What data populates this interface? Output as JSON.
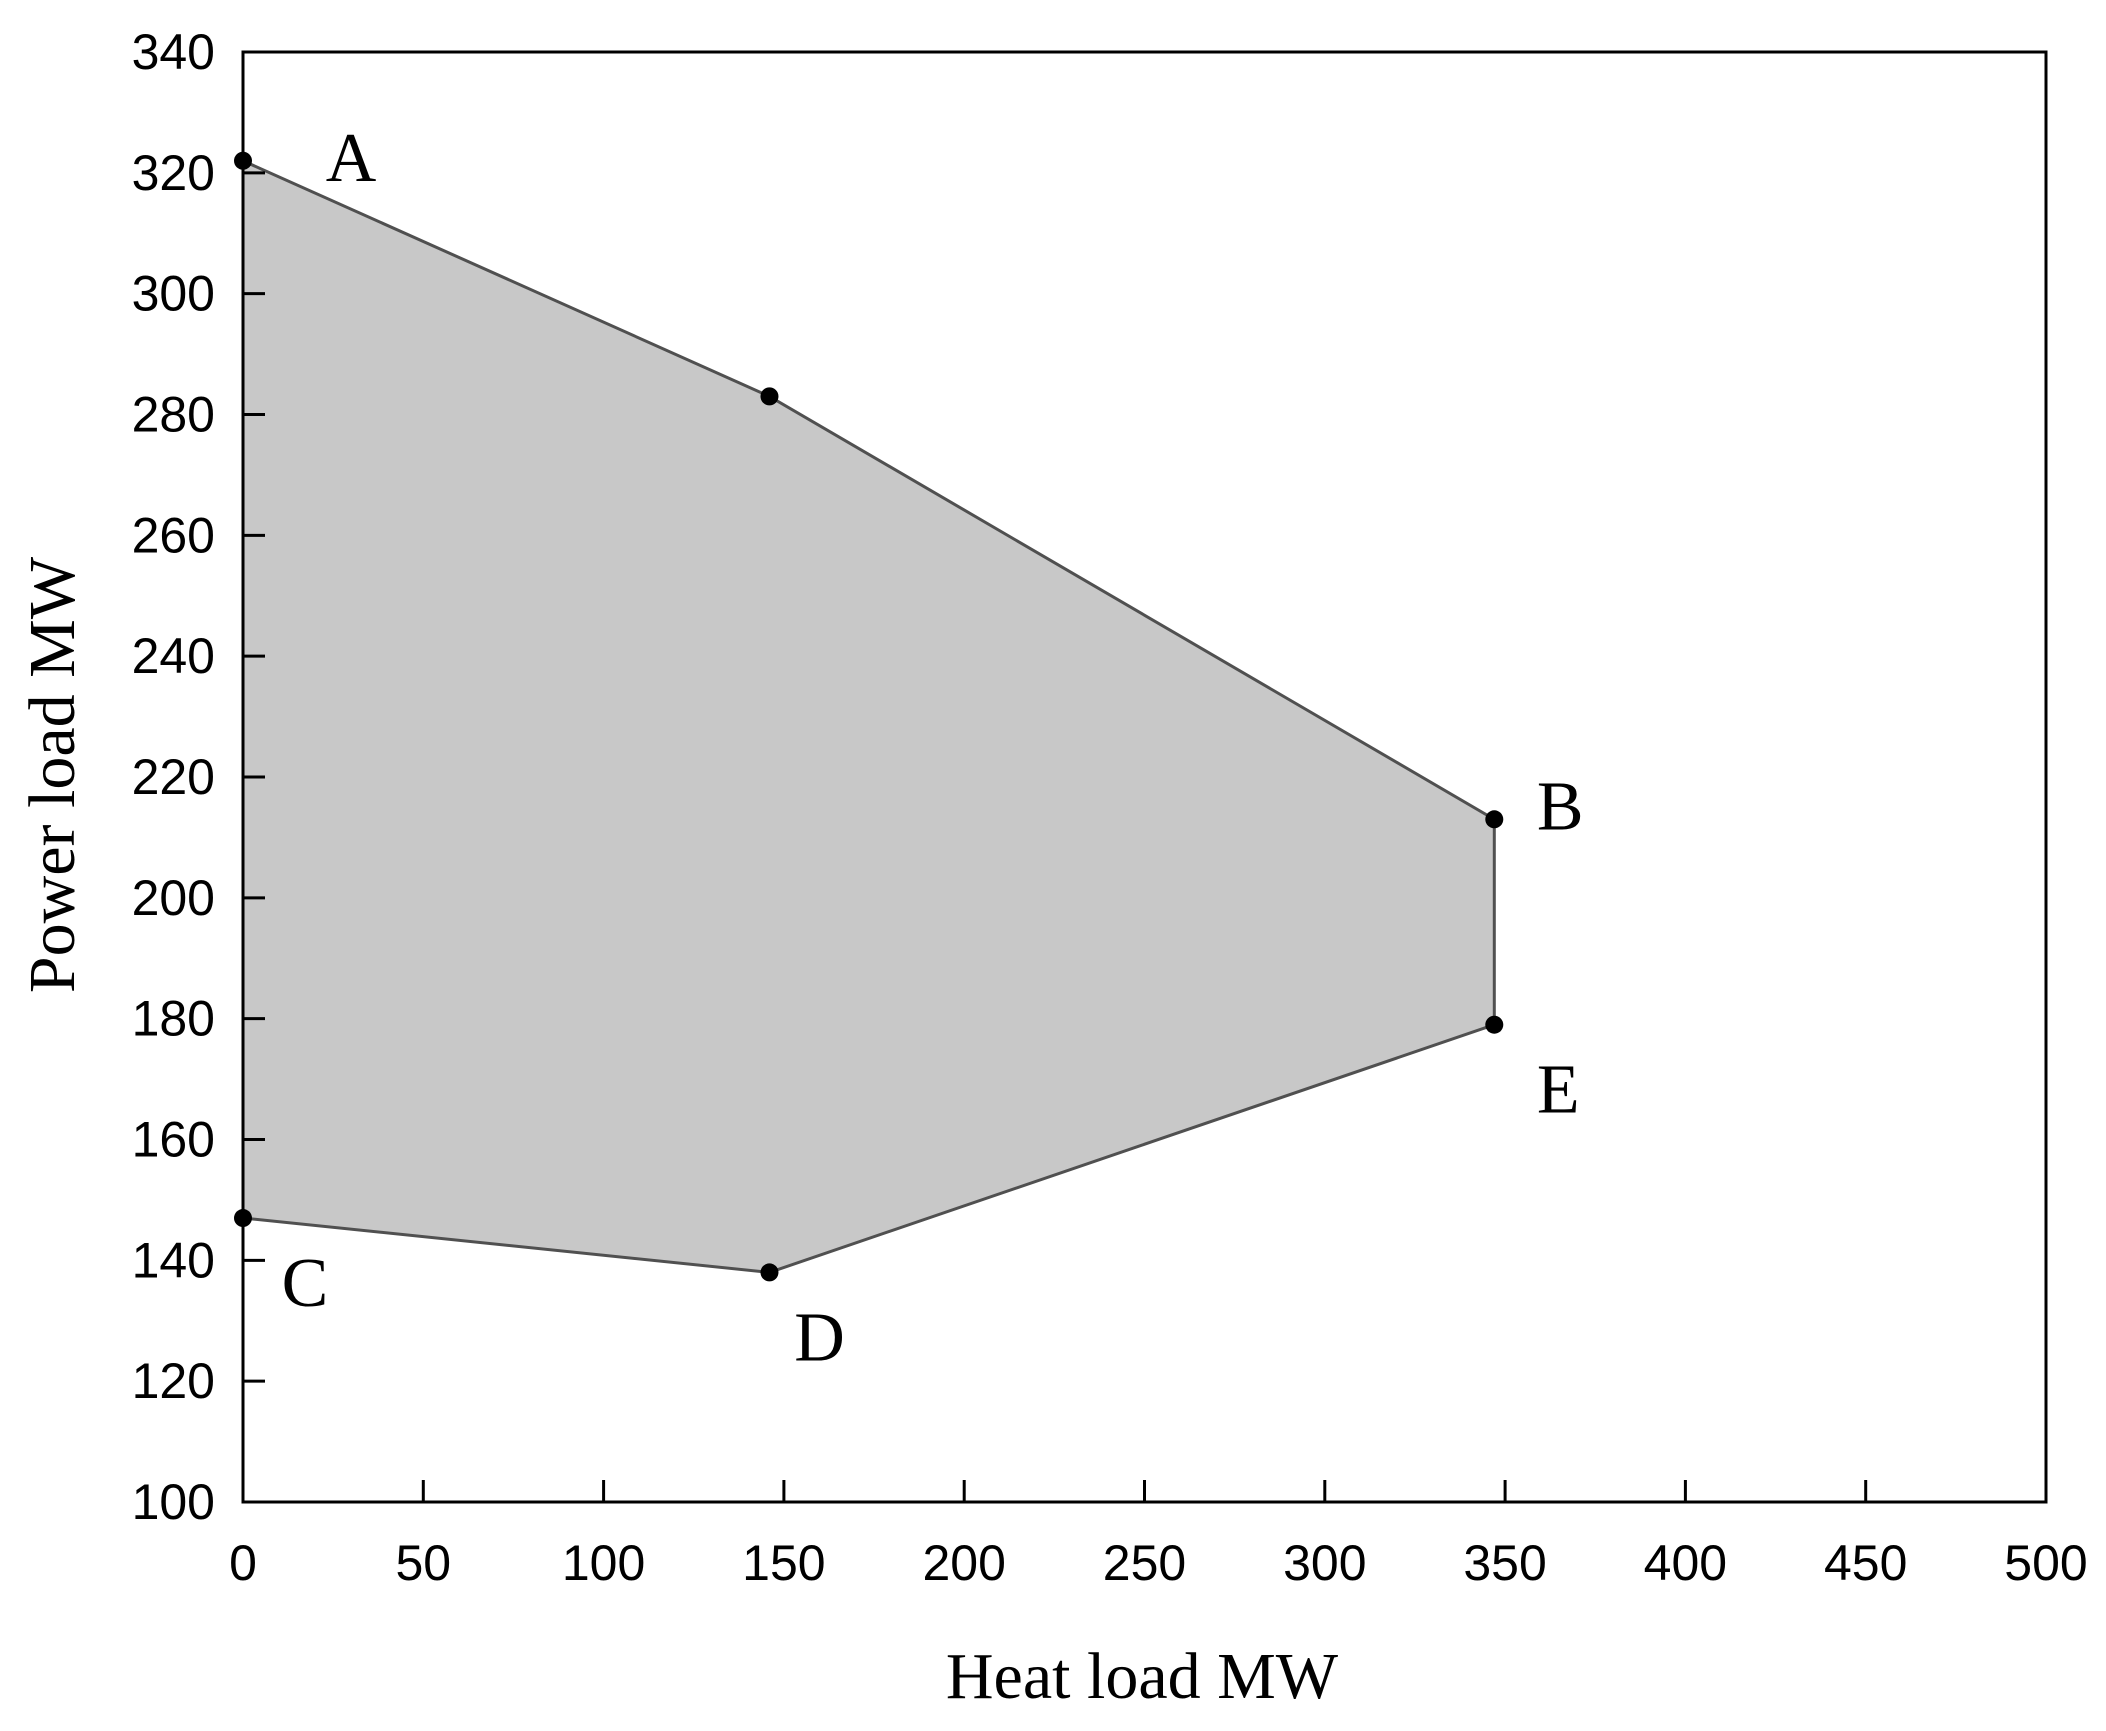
{
  "chart_data": {
    "type": "area",
    "xlabel": "Heat load MW",
    "ylabel": "Power load MW",
    "xlim": [
      0,
      500
    ],
    "ylim": [
      100,
      340
    ],
    "x_ticks": [
      0,
      50,
      100,
      150,
      200,
      250,
      300,
      350,
      400,
      450,
      500
    ],
    "y_ticks": [
      100,
      120,
      140,
      160,
      180,
      200,
      220,
      240,
      260,
      280,
      300,
      320,
      340
    ],
    "grid": false,
    "fill_color": "#c8c8c8",
    "line_color": "#505050",
    "point_color": "#000000",
    "polygon": [
      {
        "label": "A",
        "x": 0,
        "y": 322
      },
      {
        "label": "",
        "x": 146,
        "y": 283
      },
      {
        "label": "B",
        "x": 347,
        "y": 213
      },
      {
        "label": "E",
        "x": 347,
        "y": 179
      },
      {
        "label": "D",
        "x": 146,
        "y": 138
      },
      {
        "label": "C",
        "x": 0,
        "y": 147
      }
    ]
  }
}
